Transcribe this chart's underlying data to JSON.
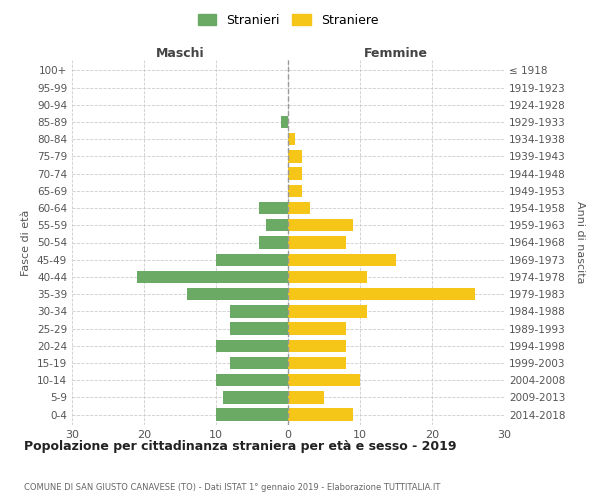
{
  "age_groups": [
    "0-4",
    "5-9",
    "10-14",
    "15-19",
    "20-24",
    "25-29",
    "30-34",
    "35-39",
    "40-44",
    "45-49",
    "50-54",
    "55-59",
    "60-64",
    "65-69",
    "70-74",
    "75-79",
    "80-84",
    "85-89",
    "90-94",
    "95-99",
    "100+"
  ],
  "birth_years": [
    "2014-2018",
    "2009-2013",
    "2004-2008",
    "1999-2003",
    "1994-1998",
    "1989-1993",
    "1984-1988",
    "1979-1983",
    "1974-1978",
    "1969-1973",
    "1964-1968",
    "1959-1963",
    "1954-1958",
    "1949-1953",
    "1944-1948",
    "1939-1943",
    "1934-1938",
    "1929-1933",
    "1924-1928",
    "1919-1923",
    "≤ 1918"
  ],
  "males": [
    10,
    9,
    10,
    8,
    10,
    8,
    8,
    14,
    21,
    10,
    4,
    3,
    4,
    0,
    0,
    0,
    0,
    1,
    0,
    0,
    0
  ],
  "females": [
    9,
    5,
    10,
    8,
    8,
    8,
    11,
    26,
    11,
    15,
    8,
    9,
    3,
    2,
    2,
    2,
    1,
    0,
    0,
    0,
    0
  ],
  "male_color": "#6aaa64",
  "female_color": "#f5c518",
  "title": "Popolazione per cittadinanza straniera per età e sesso - 2019",
  "subtitle": "COMUNE DI SAN GIUSTO CANAVESE (TO) - Dati ISTAT 1° gennaio 2019 - Elaborazione TUTTITALIA.IT",
  "xlabel_left": "Maschi",
  "xlabel_right": "Femmine",
  "ylabel_left": "Fasce di età",
  "ylabel_right": "Anni di nascita",
  "legend_male": "Stranieri",
  "legend_female": "Straniere",
  "xlim": 30,
  "background_color": "#ffffff",
  "grid_color": "#cccccc"
}
